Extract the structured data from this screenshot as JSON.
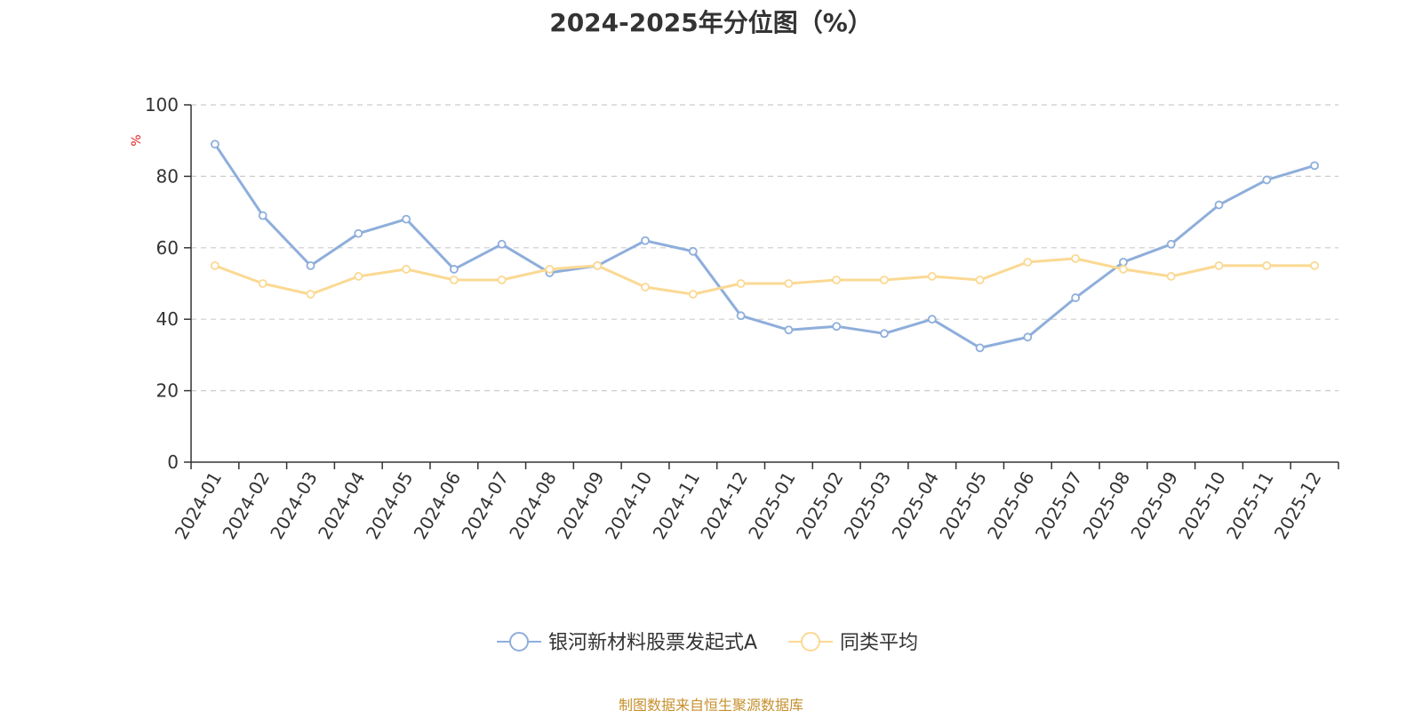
{
  "chart_data": {
    "type": "line",
    "title": "2024-2025年分位图（%）",
    "ylabel": "%",
    "ylim": [
      0,
      100
    ],
    "yticks": [
      0,
      20,
      40,
      60,
      80,
      100
    ],
    "grid": true,
    "legend_position": "bottom",
    "categories": [
      "2024-01",
      "2024-02",
      "2024-03",
      "2024-04",
      "2024-05",
      "2024-06",
      "2024-07",
      "2024-08",
      "2024-09",
      "2024-10",
      "2024-11",
      "2024-12",
      "2025-01",
      "2025-02",
      "2025-03",
      "2025-04",
      "2025-05",
      "2025-06",
      "2025-07",
      "2025-08",
      "2025-09",
      "2025-10",
      "2025-11",
      "2025-12"
    ],
    "series": [
      {
        "name": "银河新材料股票发起式A",
        "color": "#8eaedb",
        "values": [
          89,
          69,
          55,
          64,
          68,
          54,
          61,
          53,
          55,
          62,
          59,
          41,
          37,
          38,
          36,
          40,
          32,
          35,
          46,
          56,
          61,
          72,
          79,
          83
        ]
      },
      {
        "name": "同类平均",
        "color": "#fbd993",
        "values": [
          55,
          50,
          47,
          52,
          54,
          51,
          51,
          54,
          55,
          49,
          47,
          50,
          50,
          51,
          51,
          52,
          51,
          56,
          57,
          54,
          52,
          55,
          55,
          55
        ]
      }
    ]
  },
  "footer": {
    "source": "制图数据来自恒生聚源数据库"
  }
}
